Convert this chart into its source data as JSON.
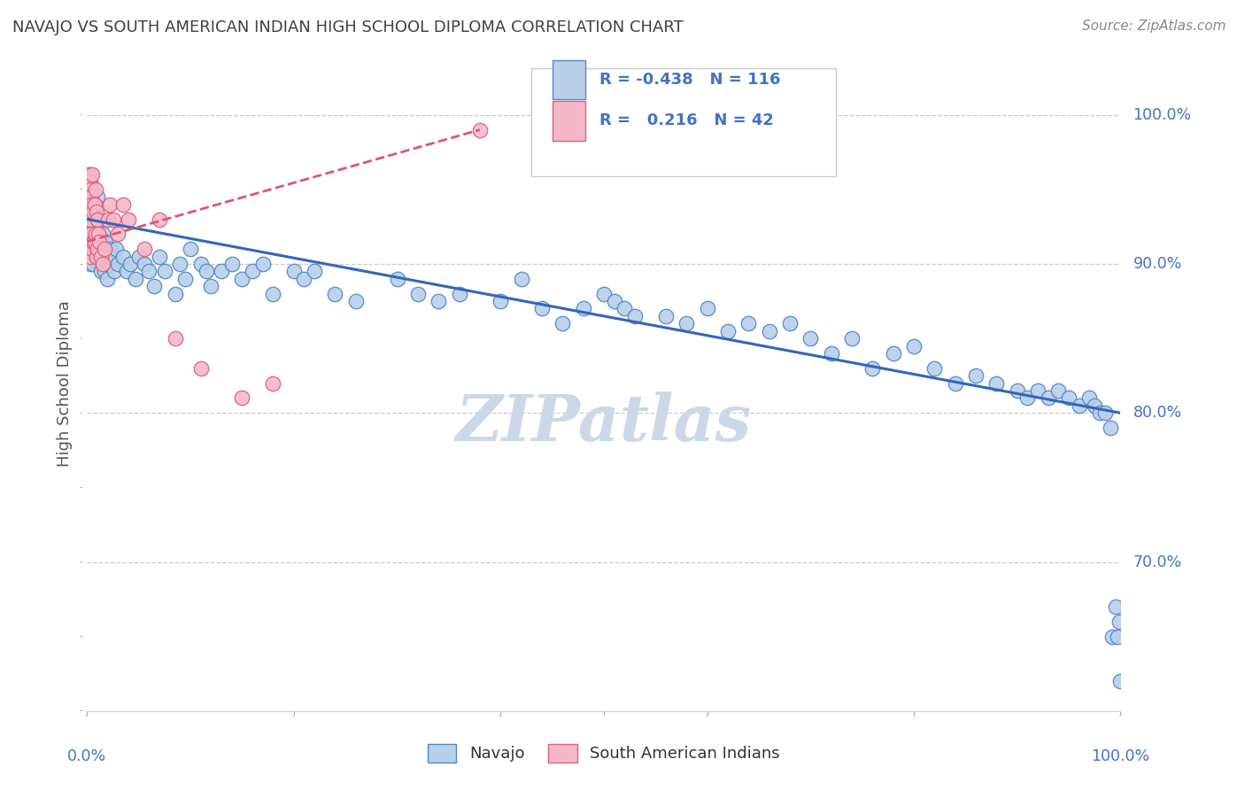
{
  "title": "NAVAJO VS SOUTH AMERICAN INDIAN HIGH SCHOOL DIPLOMA CORRELATION CHART",
  "source": "Source: ZipAtlas.com",
  "ylabel": "High School Diploma",
  "legend_label1": "Navajo",
  "legend_label2": "South American Indians",
  "R1": -0.438,
  "N1": 116,
  "R2": 0.216,
  "N2": 42,
  "color_navajo_fill": "#b8d0e8",
  "color_navajo_edge": "#5588cc",
  "color_sa_fill": "#f5b8c8",
  "color_sa_edge": "#e06080",
  "color_navajo_line": "#3366bb",
  "color_sa_line": "#dd5577",
  "color_grid": "#c8c8d8",
  "color_axis_text": "#4472c4",
  "color_title": "#404040",
  "color_source": "#888888",
  "color_ylabel": "#555555",
  "color_legend_text": "#4472c4",
  "color_watermark": "#ccd8e8",
  "watermark": "ZIPatlas",
  "xlim": [
    0.0,
    1.0
  ],
  "ylim": [
    0.6,
    1.04
  ],
  "yticks": [
    0.7,
    0.8,
    0.9,
    1.0
  ],
  "ytick_labels": [
    "70.0%",
    "80.0%",
    "90.0%",
    "100.0%"
  ],
  "nav_line_x0": 0.0,
  "nav_line_y0": 0.93,
  "nav_line_x1": 1.0,
  "nav_line_y1": 0.8,
  "sa_line_x0": 0.0,
  "sa_line_y0": 0.915,
  "sa_line_x1": 0.38,
  "sa_line_y1": 0.99,
  "navajo_x": [
    0.001,
    0.001,
    0.002,
    0.002,
    0.002,
    0.003,
    0.003,
    0.003,
    0.004,
    0.004,
    0.004,
    0.005,
    0.005,
    0.005,
    0.006,
    0.006,
    0.006,
    0.007,
    0.007,
    0.008,
    0.008,
    0.008,
    0.009,
    0.009,
    0.01,
    0.01,
    0.011,
    0.012,
    0.013,
    0.014,
    0.015,
    0.016,
    0.017,
    0.018,
    0.019,
    0.02,
    0.022,
    0.024,
    0.026,
    0.028,
    0.03,
    0.035,
    0.038,
    0.042,
    0.047,
    0.05,
    0.055,
    0.06,
    0.065,
    0.07,
    0.075,
    0.085,
    0.09,
    0.095,
    0.1,
    0.11,
    0.115,
    0.12,
    0.13,
    0.14,
    0.15,
    0.16,
    0.17,
    0.18,
    0.2,
    0.21,
    0.22,
    0.24,
    0.26,
    0.3,
    0.32,
    0.34,
    0.36,
    0.4,
    0.42,
    0.44,
    0.46,
    0.48,
    0.5,
    0.51,
    0.52,
    0.53,
    0.56,
    0.58,
    0.6,
    0.62,
    0.64,
    0.66,
    0.68,
    0.7,
    0.72,
    0.74,
    0.76,
    0.78,
    0.8,
    0.82,
    0.84,
    0.86,
    0.88,
    0.9,
    0.91,
    0.92,
    0.93,
    0.94,
    0.95,
    0.96,
    0.97,
    0.975,
    0.98,
    0.985,
    0.99,
    0.992,
    0.995,
    0.997,
    0.999,
    1.0
  ],
  "navajo_y": [
    0.94,
    0.92,
    0.96,
    0.935,
    0.91,
    0.955,
    0.93,
    0.9,
    0.95,
    0.93,
    0.92,
    0.945,
    0.925,
    0.905,
    0.94,
    0.92,
    0.9,
    0.935,
    0.91,
    0.94,
    0.925,
    0.905,
    0.93,
    0.91,
    0.945,
    0.92,
    0.915,
    0.905,
    0.895,
    0.91,
    0.92,
    0.905,
    0.895,
    0.915,
    0.89,
    0.9,
    0.91,
    0.905,
    0.895,
    0.91,
    0.9,
    0.905,
    0.895,
    0.9,
    0.89,
    0.905,
    0.9,
    0.895,
    0.885,
    0.905,
    0.895,
    0.88,
    0.9,
    0.89,
    0.91,
    0.9,
    0.895,
    0.885,
    0.895,
    0.9,
    0.89,
    0.895,
    0.9,
    0.88,
    0.895,
    0.89,
    0.895,
    0.88,
    0.875,
    0.89,
    0.88,
    0.875,
    0.88,
    0.875,
    0.89,
    0.87,
    0.86,
    0.87,
    0.88,
    0.875,
    0.87,
    0.865,
    0.865,
    0.86,
    0.87,
    0.855,
    0.86,
    0.855,
    0.86,
    0.85,
    0.84,
    0.85,
    0.83,
    0.84,
    0.845,
    0.83,
    0.82,
    0.825,
    0.82,
    0.815,
    0.81,
    0.815,
    0.81,
    0.815,
    0.81,
    0.805,
    0.81,
    0.805,
    0.8,
    0.8,
    0.79,
    0.65,
    0.67,
    0.65,
    0.66,
    0.62
  ],
  "sa_x": [
    0.001,
    0.001,
    0.001,
    0.002,
    0.002,
    0.002,
    0.003,
    0.003,
    0.003,
    0.004,
    0.004,
    0.005,
    0.005,
    0.005,
    0.006,
    0.006,
    0.007,
    0.007,
    0.008,
    0.008,
    0.009,
    0.009,
    0.01,
    0.01,
    0.011,
    0.012,
    0.013,
    0.015,
    0.017,
    0.02,
    0.022,
    0.025,
    0.03,
    0.035,
    0.04,
    0.055,
    0.07,
    0.085,
    0.11,
    0.15,
    0.18,
    0.38
  ],
  "sa_y": [
    0.96,
    0.94,
    0.92,
    0.955,
    0.935,
    0.915,
    0.95,
    0.93,
    0.905,
    0.945,
    0.92,
    0.96,
    0.94,
    0.91,
    0.935,
    0.915,
    0.94,
    0.915,
    0.95,
    0.92,
    0.935,
    0.905,
    0.93,
    0.91,
    0.92,
    0.915,
    0.905,
    0.9,
    0.91,
    0.93,
    0.94,
    0.93,
    0.92,
    0.94,
    0.93,
    0.91,
    0.93,
    0.85,
    0.83,
    0.81,
    0.82,
    0.99
  ]
}
